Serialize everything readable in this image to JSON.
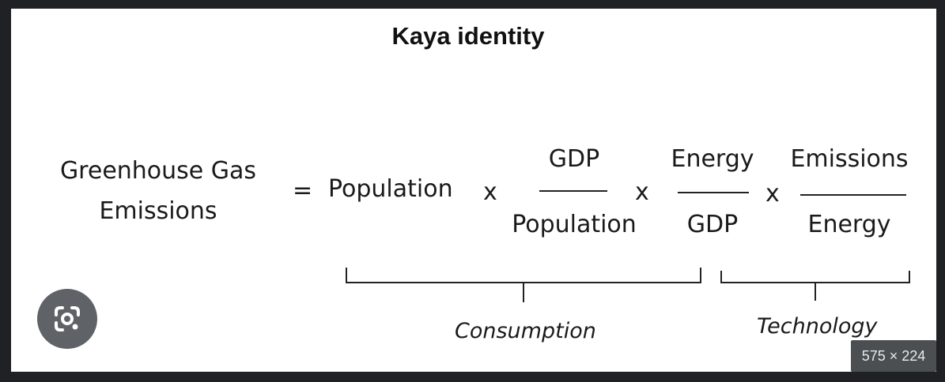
{
  "diagram": {
    "title": "Kaya identity",
    "lhs": {
      "line1": "Greenhouse Gas",
      "line2": "Emissions"
    },
    "equals": "=",
    "times": "x",
    "terms": {
      "population": "Population",
      "gdp_per_capita": {
        "numerator": "GDP",
        "denominator": "Population"
      },
      "energy_intensity": {
        "numerator": "Energy",
        "denominator": "GDP"
      },
      "carbon_intensity": {
        "numerator": "Emissions",
        "denominator": "Energy"
      }
    },
    "groups": {
      "consumption": "Consumption",
      "technology": "Technology"
    }
  },
  "overlay": {
    "lens_icon": "google-lens-icon",
    "dimensions": "575 × 224",
    "colors": {
      "page_bg": "#202124",
      "image_bg": "#ffffff",
      "lens_bg": "#5f6368"
    }
  }
}
